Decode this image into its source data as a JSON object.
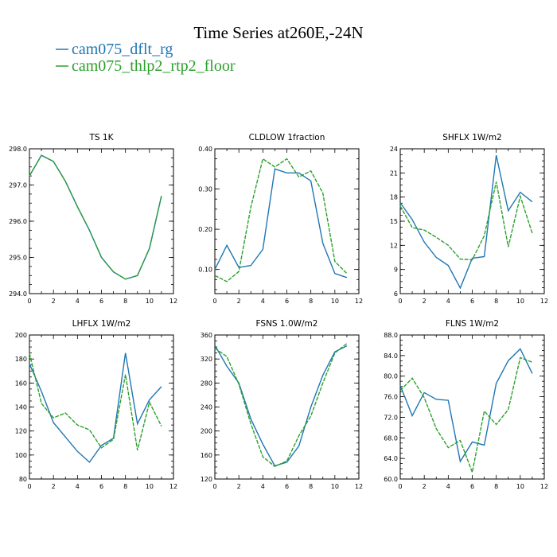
{
  "header": {
    "title": "Time Series at260E,-24N",
    "legend": [
      {
        "label": "cam075_dflt_rg",
        "color": "#1f77b4"
      },
      {
        "label": "cam075_thlp2_rtp2_floor",
        "color": "#2ca02c"
      }
    ]
  },
  "chart_data": [
    {
      "type": "line",
      "title": "TS   1K",
      "x": [
        0,
        1,
        2,
        3,
        4,
        5,
        6,
        7,
        8,
        9,
        10,
        11
      ],
      "xlim": [
        0,
        12
      ],
      "xticks": [
        "0",
        "2",
        "4",
        "6",
        "8",
        "10",
        "12"
      ],
      "ylim": [
        294.0,
        298.0
      ],
      "yticks": [
        "294.0",
        "295.0",
        "296.0",
        "297.0",
        "298.0"
      ],
      "series": [
        {
          "name": "cam075_dflt_rg",
          "color": "#1f77b4",
          "dashed": false,
          "values": [
            297.25,
            297.82,
            297.65,
            297.1,
            296.4,
            295.75,
            295.0,
            294.6,
            294.4,
            294.5,
            295.25,
            296.7
          ]
        },
        {
          "name": "cam075_thlp2_rtp2_floor",
          "color": "#2ca02c",
          "dashed": true,
          "values": [
            297.25,
            297.82,
            297.65,
            297.1,
            296.4,
            295.75,
            295.0,
            294.6,
            294.4,
            294.5,
            295.25,
            296.7
          ]
        }
      ]
    },
    {
      "type": "line",
      "title": "CLDLOW   1fraction",
      "x": [
        0,
        1,
        2,
        3,
        4,
        5,
        6,
        7,
        8,
        9,
        10,
        11
      ],
      "xlim": [
        0,
        12
      ],
      "xticks": [
        "0",
        "2",
        "4",
        "6",
        "8",
        "10",
        "12"
      ],
      "ylim": [
        0.04,
        0.4
      ],
      "yticks": [
        "0.10",
        "0.20",
        "0.30",
        "0.40"
      ],
      "yticks_values": [
        0.1,
        0.2,
        0.3,
        0.4
      ],
      "series": [
        {
          "name": "cam075_dflt_rg",
          "color": "#1f77b4",
          "dashed": false,
          "values": [
            0.1,
            0.16,
            0.105,
            0.11,
            0.15,
            0.35,
            0.34,
            0.34,
            0.32,
            0.165,
            0.09,
            0.08
          ]
        },
        {
          "name": "cam075_thlp2_rtp2_floor",
          "color": "#2ca02c",
          "dashed": true,
          "values": [
            0.085,
            0.07,
            0.095,
            0.255,
            0.375,
            0.355,
            0.375,
            0.33,
            0.345,
            0.29,
            0.12,
            0.09
          ]
        }
      ]
    },
    {
      "type": "line",
      "title": "SHFLX   1W/m2",
      "x": [
        0,
        1,
        2,
        3,
        4,
        5,
        6,
        7,
        8,
        9,
        10,
        11
      ],
      "xlim": [
        0,
        12
      ],
      "xticks": [
        "0",
        "2",
        "4",
        "6",
        "8",
        "10",
        "12"
      ],
      "ylim": [
        6,
        24
      ],
      "yticks": [
        "6",
        "9",
        "12",
        "15",
        "18",
        "21",
        "24"
      ],
      "series": [
        {
          "name": "cam075_dflt_rg",
          "color": "#1f77b4",
          "dashed": false,
          "values": [
            17.3,
            15.2,
            12.4,
            10.5,
            9.5,
            6.7,
            10.4,
            10.6,
            23.2,
            16.3,
            18.6,
            17.4
          ]
        },
        {
          "name": "cam075_thlp2_rtp2_floor",
          "color": "#2ca02c",
          "dashed": true,
          "values": [
            16.9,
            14.2,
            13.9,
            13.0,
            12.0,
            10.3,
            10.2,
            13.2,
            19.9,
            11.8,
            18.1,
            13.5
          ]
        }
      ]
    },
    {
      "type": "line",
      "title": "LHFLX   1W/m2",
      "x": [
        0,
        1,
        2,
        3,
        4,
        5,
        6,
        7,
        8,
        9,
        10,
        11
      ],
      "xlim": [
        0,
        12
      ],
      "xticks": [
        "0",
        "2",
        "4",
        "6",
        "8",
        "10",
        "12"
      ],
      "ylim": [
        80,
        200
      ],
      "yticks": [
        "80",
        "100",
        "120",
        "140",
        "160",
        "180",
        "200"
      ],
      "series": [
        {
          "name": "cam075_dflt_rg",
          "color": "#1f77b4",
          "dashed": false,
          "values": [
            176,
            153,
            127,
            115,
            103,
            94,
            108,
            114,
            185,
            126,
            146,
            157
          ]
        },
        {
          "name": "cam075_thlp2_rtp2_floor",
          "color": "#2ca02c",
          "dashed": true,
          "values": [
            185,
            143,
            131,
            135,
            125,
            121,
            106,
            113,
            167,
            104,
            144,
            124
          ]
        }
      ]
    },
    {
      "type": "line",
      "title": "FSNS   1.0W/m2",
      "x": [
        0,
        1,
        2,
        3,
        4,
        5,
        6,
        7,
        8,
        9,
        10,
        11
      ],
      "xlim": [
        0,
        12
      ],
      "xticks": [
        "0",
        "2",
        "4",
        "6",
        "8",
        "10",
        "12"
      ],
      "ylim": [
        120,
        360
      ],
      "yticks": [
        "120",
        "160",
        "200",
        "240",
        "280",
        "320",
        "360"
      ],
      "series": [
        {
          "name": "cam075_dflt_rg",
          "color": "#1f77b4",
          "dashed": false,
          "values": [
            343,
            308,
            280,
            220,
            178,
            142,
            148,
            175,
            240,
            293,
            332,
            342
          ]
        },
        {
          "name": "cam075_thlp2_rtp2_floor",
          "color": "#2ca02c",
          "dashed": true,
          "values": [
            338,
            324,
            278,
            212,
            157,
            141,
            150,
            192,
            225,
            280,
            330,
            346
          ]
        }
      ]
    },
    {
      "type": "line",
      "title": "FLNS   1W/m2",
      "x": [
        0,
        1,
        2,
        3,
        4,
        5,
        6,
        7,
        8,
        9,
        10,
        11
      ],
      "xlim": [
        0,
        12
      ],
      "xticks": [
        "0",
        "2",
        "4",
        "6",
        "8",
        "10",
        "12"
      ],
      "ylim": [
        60.0,
        88.0
      ],
      "yticks": [
        "60.0",
        "64.0",
        "68.0",
        "72.0",
        "76.0",
        "80.0",
        "84.0",
        "88.0"
      ],
      "series": [
        {
          "name": "cam075_dflt_rg",
          "color": "#1f77b4",
          "dashed": false,
          "values": [
            78.2,
            72.3,
            76.8,
            75.5,
            75.3,
            63.4,
            67.2,
            66.6,
            78.6,
            83.0,
            85.3,
            80.5
          ]
        },
        {
          "name": "cam075_thlp2_rtp2_floor",
          "color": "#2ca02c",
          "dashed": true,
          "values": [
            77.2,
            79.6,
            75.8,
            69.8,
            66.1,
            67.5,
            61.3,
            73.2,
            70.6,
            73.5,
            83.6,
            82.7
          ]
        }
      ]
    }
  ]
}
